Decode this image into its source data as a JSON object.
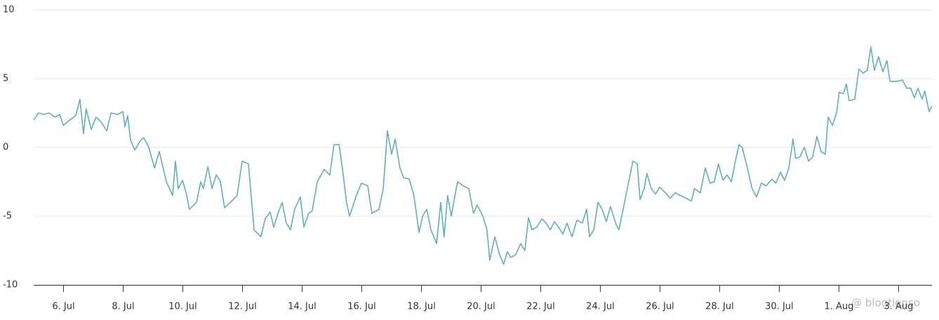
{
  "chart_data": {
    "type": "line",
    "x": [
      5.0,
      5.16,
      5.33,
      5.52,
      5.71,
      5.87,
      5.99,
      6.22,
      6.41,
      6.55,
      6.67,
      6.76,
      6.93,
      7.09,
      7.28,
      7.45,
      7.59,
      7.82,
      7.99,
      8.06,
      8.15,
      8.25,
      8.39,
      8.58,
      8.69,
      8.86,
      9.05,
      9.21,
      9.45,
      9.66,
      9.75,
      9.85,
      9.99,
      10.11,
      10.22,
      10.46,
      10.6,
      10.69,
      10.84,
      10.98,
      11.12,
      11.26,
      11.4,
      11.64,
      11.82,
      11.99,
      12.2,
      12.39,
      12.62,
      12.76,
      12.93,
      13.05,
      13.19,
      13.33,
      13.47,
      13.61,
      13.75,
      13.94,
      14.06,
      14.22,
      14.34,
      14.51,
      14.74,
      14.93,
      15.07,
      15.24,
      15.35,
      15.49,
      15.59,
      15.82,
      15.99,
      16.2,
      16.34,
      16.58,
      16.72,
      16.86,
      17.0,
      17.12,
      17.28,
      17.4,
      17.59,
      17.75,
      17.92,
      18.04,
      18.18,
      18.32,
      18.51,
      18.65,
      18.76,
      18.88,
      19.0,
      19.21,
      19.4,
      19.59,
      19.75,
      19.87,
      20.06,
      20.2,
      20.29,
      20.46,
      20.62,
      20.76,
      20.88,
      21.0,
      21.16,
      21.33,
      21.47,
      21.59,
      21.71,
      21.87,
      22.04,
      22.18,
      22.32,
      22.46,
      22.6,
      22.74,
      22.88,
      23.05,
      23.21,
      23.4,
      23.54,
      23.64,
      23.78,
      23.92,
      24.06,
      24.2,
      24.34,
      24.51,
      24.62,
      24.81,
      24.95,
      25.09,
      25.24,
      25.33,
      25.47,
      25.56,
      25.71,
      25.85,
      25.99,
      26.18,
      26.34,
      26.51,
      26.69,
      26.88,
      27.05,
      27.16,
      27.35,
      27.52,
      27.68,
      27.82,
      27.96,
      28.11,
      28.25,
      28.39,
      28.53,
      28.65,
      28.76,
      28.93,
      29.09,
      29.24,
      29.4,
      29.56,
      29.75,
      29.89,
      30.04,
      30.18,
      30.32,
      30.46,
      30.55,
      30.69,
      30.84,
      30.98,
      31.12,
      31.26,
      31.4,
      31.54,
      31.64,
      31.78,
      31.92,
      32.01,
      32.15,
      32.25,
      32.34,
      32.53,
      32.67,
      32.81,
      32.95,
      33.07,
      33.19,
      33.33,
      33.47,
      33.61,
      33.71,
      33.94,
      34.13,
      34.27,
      34.41,
      34.53,
      34.65,
      34.79,
      34.88,
      35.02,
      35.12
    ],
    "series": [
      {
        "color": "#5fb0c0",
        "values": [
          2.0,
          2.5,
          2.4,
          2.5,
          2.2,
          2.4,
          1.6,
          2.0,
          2.3,
          3.5,
          1.0,
          2.8,
          1.3,
          2.2,
          1.8,
          1.2,
          2.5,
          2.4,
          2.6,
          1.5,
          2.3,
          0.5,
          -0.2,
          0.5,
          0.7,
          0.0,
          -1.5,
          -0.3,
          -2.5,
          -3.5,
          -1.0,
          -3.0,
          -2.4,
          -3.3,
          -4.5,
          -4.0,
          -2.5,
          -3.0,
          -1.4,
          -3.0,
          -2.0,
          -2.5,
          -4.4,
          -3.9,
          -3.5,
          -1.0,
          -1.2,
          -6.0,
          -6.5,
          -5.2,
          -4.7,
          -5.8,
          -4.8,
          -4.0,
          -5.5,
          -6.0,
          -4.5,
          -3.6,
          -5.8,
          -4.8,
          -4.6,
          -2.5,
          -1.6,
          -2.0,
          0.2,
          0.2,
          -1.5,
          -4.0,
          -5.0,
          -3.5,
          -2.6,
          -2.8,
          -4.8,
          -4.5,
          -3.0,
          1.2,
          -0.5,
          0.6,
          -1.5,
          -2.2,
          -2.3,
          -3.5,
          -6.2,
          -5.0,
          -4.5,
          -6.0,
          -7.0,
          -4.0,
          -6.5,
          -3.5,
          -5.0,
          -2.5,
          -2.8,
          -3.0,
          -4.8,
          -4.2,
          -5.0,
          -6.0,
          -8.2,
          -6.5,
          -7.8,
          -8.5,
          -7.6,
          -8.0,
          -7.8,
          -7.0,
          -7.5,
          -5.1,
          -6.0,
          -5.8,
          -5.2,
          -5.5,
          -6.0,
          -5.4,
          -5.8,
          -6.3,
          -5.5,
          -6.5,
          -5.3,
          -5.5,
          -4.5,
          -6.5,
          -6.0,
          -4.0,
          -4.5,
          -5.4,
          -4.3,
          -5.5,
          -6.0,
          -4.0,
          -2.5,
          -1.0,
          -1.2,
          -3.8,
          -3.0,
          -1.9,
          -3.0,
          -3.4,
          -2.9,
          -3.3,
          -3.7,
          -3.3,
          -3.5,
          -3.7,
          -3.9,
          -3.0,
          -3.3,
          -1.5,
          -2.6,
          -2.5,
          -1.2,
          -2.4,
          -2.0,
          -2.5,
          -1.0,
          0.2,
          0.0,
          -1.5,
          -3.0,
          -3.6,
          -2.6,
          -2.8,
          -2.3,
          -2.6,
          -1.8,
          -2.4,
          -1.5,
          0.6,
          -0.8,
          -0.7,
          0.0,
          -1.0,
          -0.7,
          0.8,
          -0.3,
          -0.5,
          2.2,
          1.6,
          2.5,
          4.0,
          3.9,
          4.6,
          3.4,
          3.5,
          5.7,
          5.4,
          5.6,
          7.3,
          5.6,
          6.6,
          5.5,
          6.3,
          4.8,
          4.8,
          4.9,
          4.3,
          4.3,
          3.6,
          4.3,
          3.5,
          4.1,
          2.6,
          3.0
        ]
      }
    ],
    "xlim": [
      5,
      35.12
    ],
    "xticks": [
      {
        "value": 6,
        "label": "6. Jul"
      },
      {
        "value": 8,
        "label": "8. Jul"
      },
      {
        "value": 10,
        "label": "10. Jul"
      },
      {
        "value": 12,
        "label": "12. Jul"
      },
      {
        "value": 14,
        "label": "14. Jul"
      },
      {
        "value": 16,
        "label": "16. Jul"
      },
      {
        "value": 18,
        "label": "18. Jul"
      },
      {
        "value": 20,
        "label": "20. Jul"
      },
      {
        "value": 22,
        "label": "22. Jul"
      },
      {
        "value": 24,
        "label": "24. Jul"
      },
      {
        "value": 26,
        "label": "26. Jul"
      },
      {
        "value": 28,
        "label": "28. Jul"
      },
      {
        "value": 30,
        "label": "30. Jul"
      },
      {
        "value": 32,
        "label": "1. Aug"
      },
      {
        "value": 34,
        "label": "3. Aug"
      }
    ],
    "ylim": [
      -10,
      10
    ],
    "yticks": [
      -10,
      -5,
      0,
      5,
      10
    ],
    "grid": true,
    "watermark": "@ blogtienso"
  }
}
